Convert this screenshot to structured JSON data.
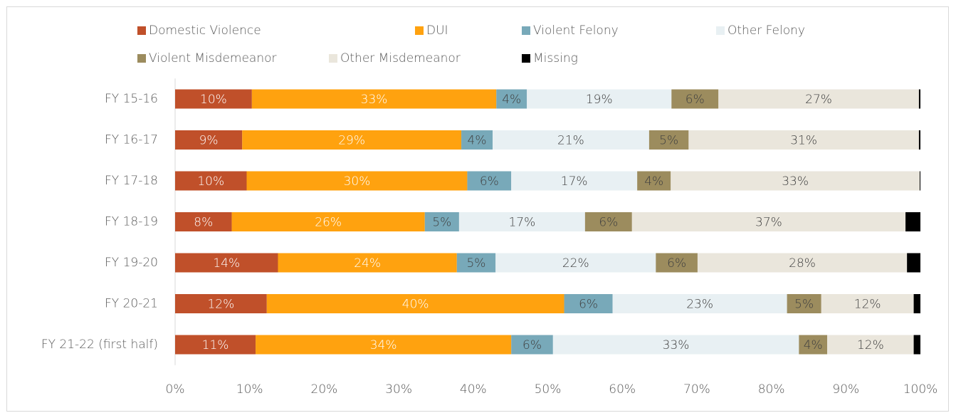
{
  "chart_data": {
    "type": "stacked-bar-horizontal",
    "categories": [
      "FY 15-16",
      "FY 16-17",
      "FY 17-18",
      "FY 18-19",
      "FY 19-20",
      "FY 20-21",
      "FY 21-22 (first half)"
    ],
    "series": [
      {
        "name": "Domestic Violence",
        "color": "#c0502a",
        "values": [
          10.3,
          9.0,
          9.6,
          7.6,
          13.8,
          12.3,
          10.8
        ],
        "value_labels": [
          "10%",
          "9%",
          "10%",
          "8%",
          "14%",
          "12%",
          "11%"
        ]
      },
      {
        "name": "DUI",
        "color": "#ffa20f",
        "values": [
          32.8,
          29.4,
          29.6,
          25.9,
          24.0,
          39.9,
          34.3
        ],
        "value_labels": [
          "33%",
          "29%",
          "30%",
          "26%",
          "24%",
          "40%",
          "34%"
        ]
      },
      {
        "name": "Violent Felony",
        "color": "#78a9b9",
        "values": [
          4.1,
          4.2,
          5.9,
          4.6,
          5.2,
          6.5,
          5.6
        ],
        "value_labels": [
          "4%",
          "4%",
          "6%",
          "5%",
          "5%",
          "6%",
          "6%"
        ]
      },
      {
        "name": "Other Felony",
        "color": "#e8f0f3",
        "values": [
          19.4,
          21.0,
          16.9,
          16.9,
          21.5,
          23.4,
          33.0
        ],
        "value_labels": [
          "19%",
          "21%",
          "17%",
          "17%",
          "22%",
          "23%",
          "33%"
        ]
      },
      {
        "name": "Violent Misdemeanor",
        "color": "#9c8c5e",
        "values": [
          6.3,
          5.3,
          4.5,
          6.3,
          5.6,
          4.6,
          3.8
        ],
        "value_labels": [
          "6%",
          "5%",
          "4%",
          "6%",
          "6%",
          "5%",
          "4%"
        ]
      },
      {
        "name": "Other Misdemeanor",
        "color": "#eae6dc",
        "values": [
          26.9,
          30.9,
          33.4,
          36.7,
          28.1,
          12.4,
          11.6
        ],
        "value_labels": [
          "27%",
          "31%",
          "33%",
          "37%",
          "28%",
          "12%",
          "12%"
        ]
      },
      {
        "name": "Missing",
        "color": "#000000",
        "values": [
          0.2,
          0.2,
          0.1,
          2.0,
          1.8,
          0.9,
          0.9
        ]
      }
    ],
    "xlim": [
      0,
      100
    ],
    "xticks": [
      {
        "value": 0,
        "label": "0%"
      },
      {
        "value": 10,
        "label": "10%"
      },
      {
        "value": 20,
        "label": "20%"
      },
      {
        "value": 30,
        "label": "30%"
      },
      {
        "value": 40,
        "label": "40%"
      },
      {
        "value": 50,
        "label": "50%"
      },
      {
        "value": 60,
        "label": "60%"
      },
      {
        "value": 70,
        "label": "70%"
      },
      {
        "value": 80,
        "label": "80%"
      },
      {
        "value": 90,
        "label": "90%"
      },
      {
        "value": 100,
        "label": "100%"
      }
    ],
    "grid": false,
    "legend": "top"
  }
}
